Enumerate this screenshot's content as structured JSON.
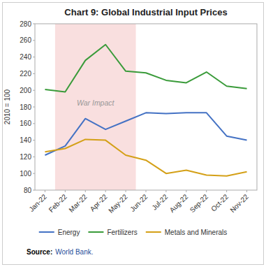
{
  "chart_data": {
    "type": "line",
    "title": "Chart 9: Global Industrial Input Prices",
    "ylabel": "2010 = 100",
    "source": {
      "label": "Source:",
      "text": "World Bank.",
      "color": "#1F4E9A"
    },
    "categories": [
      "Jan-22",
      "Feb-22",
      "Mar-22",
      "Apr-22",
      "May-22",
      "Jun-22",
      "Jul-22",
      "Aug-22",
      "Sep-22",
      "Oct-22",
      "Nov-22"
    ],
    "series": [
      {
        "name": "Energy",
        "color": "#4472C4",
        "values": [
          122,
          133,
          166,
          153,
          163,
          173,
          172,
          173,
          173,
          145,
          140
        ]
      },
      {
        "name": "Fertilizers",
        "color": "#3A9B3A",
        "values": [
          201,
          198,
          236,
          255,
          223,
          221,
          212,
          209,
          222,
          205,
          202
        ]
      },
      {
        "name": "Metals and Minerals",
        "color": "#D4A017",
        "values": [
          126,
          130,
          141,
          140,
          122,
          116,
          100,
          104,
          98,
          97,
          102
        ]
      }
    ],
    "shaded": {
      "from": "Feb-22",
      "to": "May-22",
      "color": "#F2B8B8"
    },
    "annotations": [
      {
        "text": "War Impact",
        "x": 2.5,
        "y": 185
      }
    ],
    "ylim": [
      80,
      280
    ],
    "yticks": [
      80,
      100,
      120,
      140,
      160,
      180,
      200,
      220,
      240,
      260,
      280
    ],
    "grid": false,
    "legend": "bottom"
  }
}
